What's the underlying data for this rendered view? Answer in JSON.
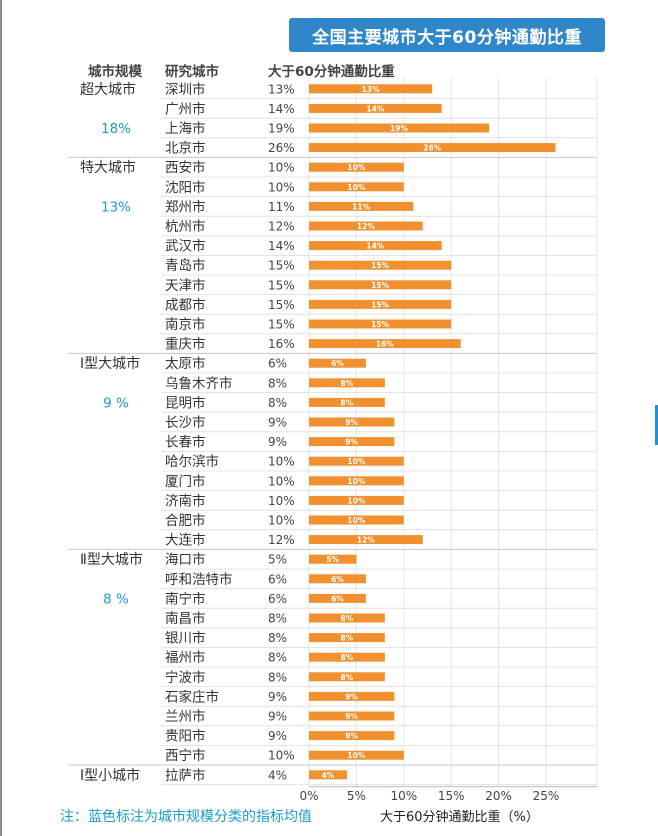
{
  "title": "全国主要城市大于60分钟通勤比重",
  "headers": {
    "tier": "城市规模",
    "city": "研究城市",
    "share": "大于60分钟通勤比重"
  },
  "note": "注：蓝色标注为城市规模分类的指标均值",
  "chart_data": {
    "type": "bar",
    "orientation": "horizontal",
    "title": "全国主要城市大于60分钟通勤比重",
    "xlabel": "大于60分钟通勤比重（%）",
    "xlim": [
      0,
      30
    ],
    "xticks": [
      "0%",
      "5%",
      "10%",
      "15%",
      "20%",
      "25%"
    ],
    "xtick_values": [
      0,
      5,
      10,
      15,
      20,
      25
    ],
    "grid": true,
    "bar_color": "#f0902e",
    "mean_color": "#1a9ccf",
    "groups": [
      {
        "tier": "超大城市",
        "mean": "18%",
        "cities": [
          {
            "city": "深圳市",
            "value": 13,
            "label": "13%"
          },
          {
            "city": "广州市",
            "value": 14,
            "label": "14%"
          },
          {
            "city": "上海市",
            "value": 19,
            "label": "19%"
          },
          {
            "city": "北京市",
            "value": 26,
            "label": "26%"
          }
        ]
      },
      {
        "tier": "特大城市",
        "mean": "13%",
        "cities": [
          {
            "city": "西安市",
            "value": 10,
            "label": "10%"
          },
          {
            "city": "沈阳市",
            "value": 10,
            "label": "10%"
          },
          {
            "city": "郑州市",
            "value": 11,
            "label": "11%"
          },
          {
            "city": "杭州市",
            "value": 12,
            "label": "12%"
          },
          {
            "city": "武汉市",
            "value": 14,
            "label": "14%"
          },
          {
            "city": "青岛市",
            "value": 15,
            "label": "15%"
          },
          {
            "city": "天津市",
            "value": 15,
            "label": "15%"
          },
          {
            "city": "成都市",
            "value": 15,
            "label": "15%"
          },
          {
            "city": "南京市",
            "value": 15,
            "label": "15%"
          },
          {
            "city": "重庆市",
            "value": 16,
            "label": "16%"
          }
        ]
      },
      {
        "tier": "Ⅰ型大城市",
        "mean": "9 %",
        "cities": [
          {
            "city": "太原市",
            "value": 6,
            "label": "6%"
          },
          {
            "city": "乌鲁木齐市",
            "value": 8,
            "label": "8%"
          },
          {
            "city": "昆明市",
            "value": 8,
            "label": "8%"
          },
          {
            "city": "长沙市",
            "value": 9,
            "label": "9%"
          },
          {
            "city": "长春市",
            "value": 9,
            "label": "9%"
          },
          {
            "city": "哈尔滨市",
            "value": 10,
            "label": "10%"
          },
          {
            "city": "厦门市",
            "value": 10,
            "label": "10%"
          },
          {
            "city": "济南市",
            "value": 10,
            "label": "10%"
          },
          {
            "city": "合肥市",
            "value": 10,
            "label": "10%"
          },
          {
            "city": "大连市",
            "value": 12,
            "label": "12%"
          }
        ]
      },
      {
        "tier": "Ⅱ型大城市",
        "mean": "8 %",
        "cities": [
          {
            "city": "海口市",
            "value": 5,
            "label": "5%"
          },
          {
            "city": "呼和浩特市",
            "value": 6,
            "label": "6%"
          },
          {
            "city": "南宁市",
            "value": 6,
            "label": "6%"
          },
          {
            "city": "南昌市",
            "value": 8,
            "label": "8%"
          },
          {
            "city": "银川市",
            "value": 8,
            "label": "8%"
          },
          {
            "city": "福州市",
            "value": 8,
            "label": "8%"
          },
          {
            "city": "宁波市",
            "value": 8,
            "label": "8%"
          },
          {
            "city": "石家庄市",
            "value": 9,
            "label": "9%"
          },
          {
            "city": "兰州市",
            "value": 9,
            "label": "9%"
          },
          {
            "city": "贵阳市",
            "value": 9,
            "label": "9%"
          },
          {
            "city": "西宁市",
            "value": 10,
            "label": "10%"
          }
        ]
      },
      {
        "tier": "Ⅰ型小城市",
        "mean": "",
        "cities": [
          {
            "city": "拉萨市",
            "value": 4,
            "label": "4%"
          }
        ]
      }
    ]
  }
}
